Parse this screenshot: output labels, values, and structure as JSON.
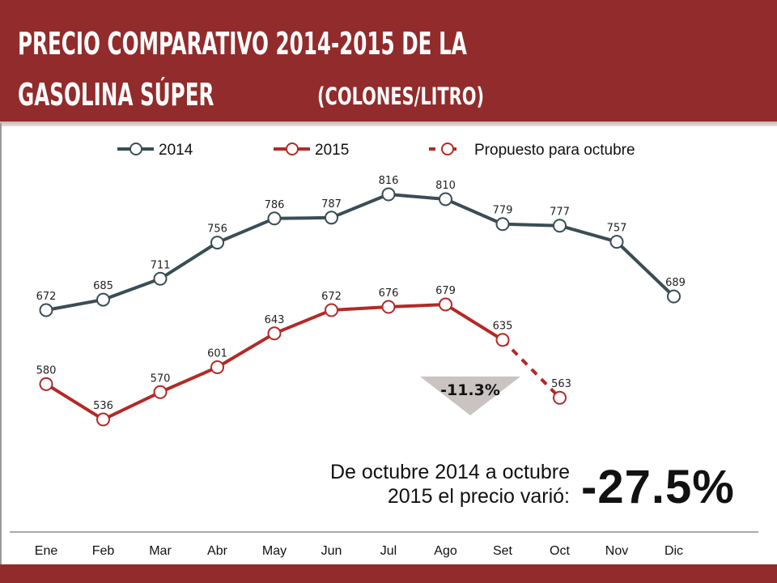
{
  "header": {
    "title_line1": "PRECIO COMPARATIVO 2014-2015 DE LA",
    "title_line2": "GASOLINA SÚPER",
    "unit": "(COLONES/LITRO)"
  },
  "colors": {
    "brand": "#922b2b",
    "series2014": "#3a4d54",
    "series2015": "#b22a26",
    "arrow": "#c9c3c1"
  },
  "chart_data": {
    "type": "line",
    "title": "PRECIO COMPARATIVO 2014-2015 DE LA GASOLINA SÚPER (COLONES/LITRO)",
    "categories": [
      "Ene",
      "Feb",
      "Mar",
      "Abr",
      "May",
      "Jun",
      "Jul",
      "Ago",
      "Set",
      "Oct",
      "Nov",
      "Dic"
    ],
    "series": [
      {
        "name": "2014",
        "values": [
          672,
          685,
          711,
          756,
          786,
          787,
          816,
          810,
          779,
          777,
          757,
          689
        ]
      },
      {
        "name": "2015",
        "values": [
          580,
          536,
          570,
          601,
          643,
          672,
          676,
          679,
          635,
          null,
          null,
          null
        ]
      },
      {
        "name": "Propuesto para octubre",
        "values": [
          null,
          null,
          null,
          null,
          null,
          null,
          null,
          null,
          635,
          563,
          null,
          null
        ]
      }
    ],
    "legend": [
      "2014",
      "2015",
      "Propuesto para octubre"
    ],
    "legend_position": "top",
    "grid": false,
    "annotations": {
      "arrow_label": "-11.3%"
    }
  },
  "note": {
    "line1": "De octubre 2014 a octubre",
    "line2": "2015 el precio varió:",
    "change": "-27.5%"
  }
}
